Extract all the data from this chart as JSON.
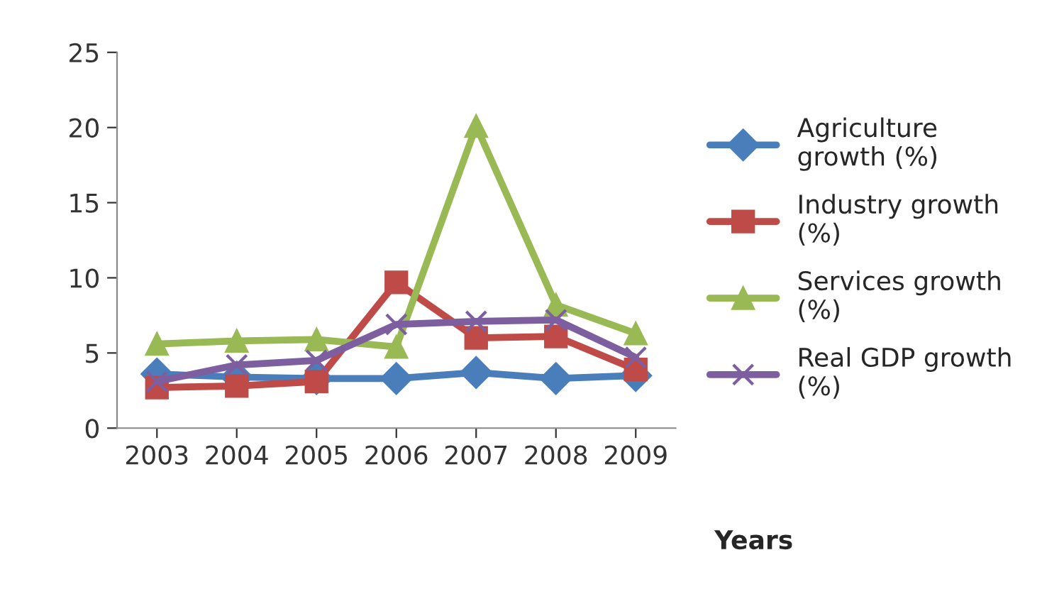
{
  "chart_data": {
    "type": "line",
    "xlabel": "Years",
    "categories": [
      "2003",
      "2004",
      "2005",
      "2006",
      "2007",
      "2008",
      "2009"
    ],
    "series": [
      {
        "name": "Agriculture\ngrowth (%)",
        "color": "#4a7ebb",
        "marker": "diamond",
        "values": [
          3.6,
          3.4,
          3.3,
          3.3,
          3.7,
          3.3,
          3.5
        ]
      },
      {
        "name": "Industry growth\n(%)",
        "color": "#be4b48",
        "marker": "square",
        "values": [
          2.7,
          2.8,
          3.1,
          9.7,
          6.0,
          6.1,
          3.9
        ]
      },
      {
        "name": "Services growth\n(%)",
        "color": "#98b954",
        "marker": "triangle",
        "values": [
          5.6,
          5.8,
          5.9,
          5.4,
          20.1,
          8.2,
          6.3
        ]
      },
      {
        "name": "Real GDP growth\n(%)",
        "color": "#7d5fa0",
        "marker": "cross",
        "values": [
          3.1,
          4.2,
          4.5,
          6.9,
          7.1,
          7.2,
          4.7
        ]
      }
    ],
    "ylim": [
      0,
      25
    ],
    "yticks": [
      0,
      5,
      10,
      15,
      20,
      25
    ],
    "grid": false,
    "legend": "right"
  }
}
